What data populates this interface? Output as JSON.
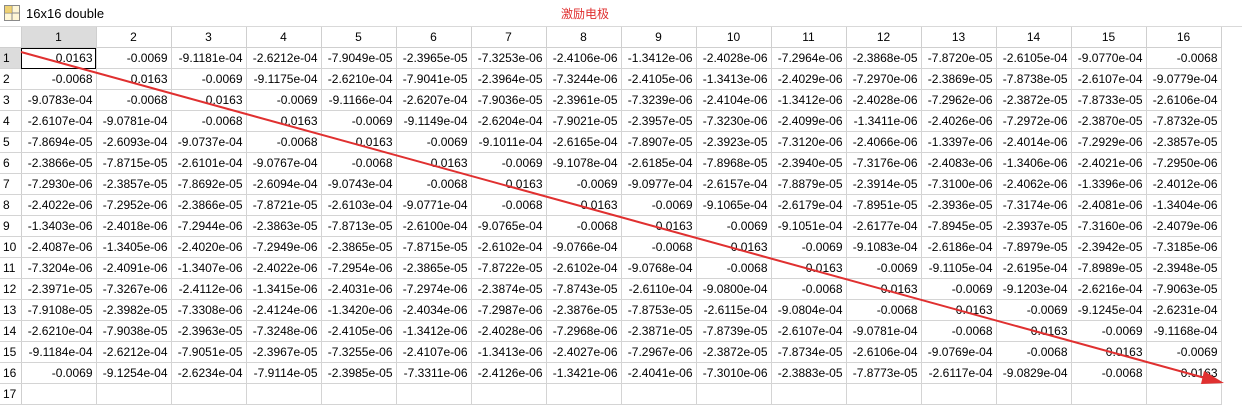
{
  "title_bar": {
    "icon": "grid-table-icon",
    "title": "16x16 double"
  },
  "annotation": {
    "text": "激励电极",
    "color": "#e03030"
  },
  "arrow": {
    "color": "#e03030",
    "icon": "diagonal-arrow"
  },
  "columns": [
    "1",
    "2",
    "3",
    "4",
    "5",
    "6",
    "7",
    "8",
    "9",
    "10",
    "11",
    "12",
    "13",
    "14",
    "15",
    "16"
  ],
  "rows": [
    {
      "label": "1",
      "cells": [
        "0.0163",
        "-0.0069",
        "-9.1181e-04",
        "-2.6212e-04",
        "-7.9049e-05",
        "-2.3965e-05",
        "-7.3253e-06",
        "-2.4106e-06",
        "-1.3412e-06",
        "-2.4028e-06",
        "-7.2964e-06",
        "-2.3868e-05",
        "-7.8720e-05",
        "-2.6105e-04",
        "-9.0770e-04",
        "-0.0068"
      ]
    },
    {
      "label": "2",
      "cells": [
        "-0.0068",
        "0.0163",
        "-0.0069",
        "-9.1175e-04",
        "-2.6210e-04",
        "-7.9041e-05",
        "-2.3964e-05",
        "-7.3244e-06",
        "-2.4105e-06",
        "-1.3413e-06",
        "-2.4029e-06",
        "-7.2970e-06",
        "-2.3869e-05",
        "-7.8738e-05",
        "-2.6107e-04",
        "-9.0779e-04"
      ]
    },
    {
      "label": "3",
      "cells": [
        "-9.0783e-04",
        "-0.0068",
        "0.0163",
        "-0.0069",
        "-9.1166e-04",
        "-2.6207e-04",
        "-7.9036e-05",
        "-2.3961e-05",
        "-7.3239e-06",
        "-2.4104e-06",
        "-1.3412e-06",
        "-2.4028e-06",
        "-7.2962e-06",
        "-2.3872e-05",
        "-7.8733e-05",
        "-2.6106e-04"
      ]
    },
    {
      "label": "4",
      "cells": [
        "-2.6107e-04",
        "-9.0781e-04",
        "-0.0068",
        "0.0163",
        "-0.0069",
        "-9.1149e-04",
        "-2.6204e-04",
        "-7.9021e-05",
        "-2.3957e-05",
        "-7.3230e-06",
        "-2.4099e-06",
        "-1.3411e-06",
        "-2.4026e-06",
        "-7.2972e-06",
        "-2.3870e-05",
        "-7.8732e-05"
      ]
    },
    {
      "label": "5",
      "cells": [
        "-7.8694e-05",
        "-2.6093e-04",
        "-9.0737e-04",
        "-0.0068",
        "0.0163",
        "-0.0069",
        "-9.1011e-04",
        "-2.6165e-04",
        "-7.8907e-05",
        "-2.3923e-05",
        "-7.3120e-06",
        "-2.4066e-06",
        "-1.3397e-06",
        "-2.4014e-06",
        "-7.2929e-06",
        "-2.3857e-05"
      ]
    },
    {
      "label": "6",
      "cells": [
        "-2.3866e-05",
        "-7.8715e-05",
        "-2.6101e-04",
        "-9.0767e-04",
        "-0.0068",
        "0.0163",
        "-0.0069",
        "-9.1078e-04",
        "-2.6185e-04",
        "-7.8968e-05",
        "-2.3940e-05",
        "-7.3176e-06",
        "-2.4083e-06",
        "-1.3406e-06",
        "-2.4021e-06",
        "-7.2950e-06"
      ]
    },
    {
      "label": "7",
      "cells": [
        "-7.2930e-06",
        "-2.3857e-05",
        "-7.8692e-05",
        "-2.6094e-04",
        "-9.0743e-04",
        "-0.0068",
        "0.0163",
        "-0.0069",
        "-9.0977e-04",
        "-2.6157e-04",
        "-7.8879e-05",
        "-2.3914e-05",
        "-7.3100e-06",
        "-2.4062e-06",
        "-1.3396e-06",
        "-2.4012e-06"
      ]
    },
    {
      "label": "8",
      "cells": [
        "-2.4022e-06",
        "-7.2952e-06",
        "-2.3866e-05",
        "-7.8721e-05",
        "-2.6103e-04",
        "-9.0771e-04",
        "-0.0068",
        "0.0163",
        "-0.0069",
        "-9.1065e-04",
        "-2.6179e-04",
        "-7.8951e-05",
        "-2.3936e-05",
        "-7.3174e-06",
        "-2.4081e-06",
        "-1.3404e-06"
      ]
    },
    {
      "label": "9",
      "cells": [
        "-1.3403e-06",
        "-2.4018e-06",
        "-7.2944e-06",
        "-2.3863e-05",
        "-7.8713e-05",
        "-2.6100e-04",
        "-9.0765e-04",
        "-0.0068",
        "0.0163",
        "-0.0069",
        "-9.1051e-04",
        "-2.6177e-04",
        "-7.8945e-05",
        "-2.3937e-05",
        "-7.3160e-06",
        "-2.4079e-06"
      ]
    },
    {
      "label": "10",
      "cells": [
        "-2.4087e-06",
        "-1.3405e-06",
        "-2.4020e-06",
        "-7.2949e-06",
        "-2.3865e-05",
        "-7.8715e-05",
        "-2.6102e-04",
        "-9.0766e-04",
        "-0.0068",
        "0.0163",
        "-0.0069",
        "-9.1083e-04",
        "-2.6186e-04",
        "-7.8979e-05",
        "-2.3942e-05",
        "-7.3185e-06"
      ]
    },
    {
      "label": "11",
      "cells": [
        "-7.3204e-06",
        "-2.4091e-06",
        "-1.3407e-06",
        "-2.4022e-06",
        "-7.2954e-06",
        "-2.3865e-05",
        "-7.8722e-05",
        "-2.6102e-04",
        "-9.0768e-04",
        "-0.0068",
        "0.0163",
        "-0.0069",
        "-9.1105e-04",
        "-2.6195e-04",
        "-7.8989e-05",
        "-2.3948e-05"
      ]
    },
    {
      "label": "12",
      "cells": [
        "-2.3971e-05",
        "-7.3267e-06",
        "-2.4112e-06",
        "-1.3415e-06",
        "-2.4031e-06",
        "-7.2974e-06",
        "-2.3874e-05",
        "-7.8743e-05",
        "-2.6110e-04",
        "-9.0800e-04",
        "-0.0068",
        "0.0163",
        "-0.0069",
        "-9.1203e-04",
        "-2.6216e-04",
        "-7.9063e-05"
      ]
    },
    {
      "label": "13",
      "cells": [
        "-7.9108e-05",
        "-2.3982e-05",
        "-7.3308e-06",
        "-2.4124e-06",
        "-1.3420e-06",
        "-2.4034e-06",
        "-7.2987e-06",
        "-2.3876e-05",
        "-7.8753e-05",
        "-2.6115e-04",
        "-9.0804e-04",
        "-0.0068",
        "0.0163",
        "-0.0069",
        "-9.1245e-04",
        "-2.6231e-04"
      ]
    },
    {
      "label": "14",
      "cells": [
        "-2.6210e-04",
        "-7.9038e-05",
        "-2.3963e-05",
        "-7.3248e-06",
        "-2.4105e-06",
        "-1.3412e-06",
        "-2.4028e-06",
        "-7.2968e-06",
        "-2.3871e-05",
        "-7.8739e-05",
        "-2.6107e-04",
        "-9.0781e-04",
        "-0.0068",
        "0.0163",
        "-0.0069",
        "-9.1168e-04"
      ]
    },
    {
      "label": "15",
      "cells": [
        "-9.1184e-04",
        "-2.6212e-04",
        "-7.9051e-05",
        "-2.3967e-05",
        "-7.3255e-06",
        "-2.4107e-06",
        "-1.3413e-06",
        "-2.4027e-06",
        "-7.2967e-06",
        "-2.3872e-05",
        "-7.8734e-05",
        "-2.6106e-04",
        "-9.0769e-04",
        "-0.0068",
        "0.0163",
        "-0.0069"
      ]
    },
    {
      "label": "16",
      "cells": [
        "-0.0069",
        "-9.1254e-04",
        "-2.6234e-04",
        "-7.9114e-05",
        "-2.3985e-05",
        "-7.3311e-06",
        "-2.4126e-06",
        "-1.3421e-06",
        "-2.4041e-06",
        "-7.3010e-06",
        "-2.3883e-05",
        "-7.8773e-05",
        "-2.6117e-04",
        "-9.0829e-04",
        "-0.0068",
        "0.0163"
      ]
    },
    {
      "label": "17",
      "cells": [
        "",
        "",
        "",
        "",
        "",
        "",
        "",
        "",
        "",
        "",
        "",
        "",
        "",
        "",
        "",
        ""
      ]
    }
  ]
}
